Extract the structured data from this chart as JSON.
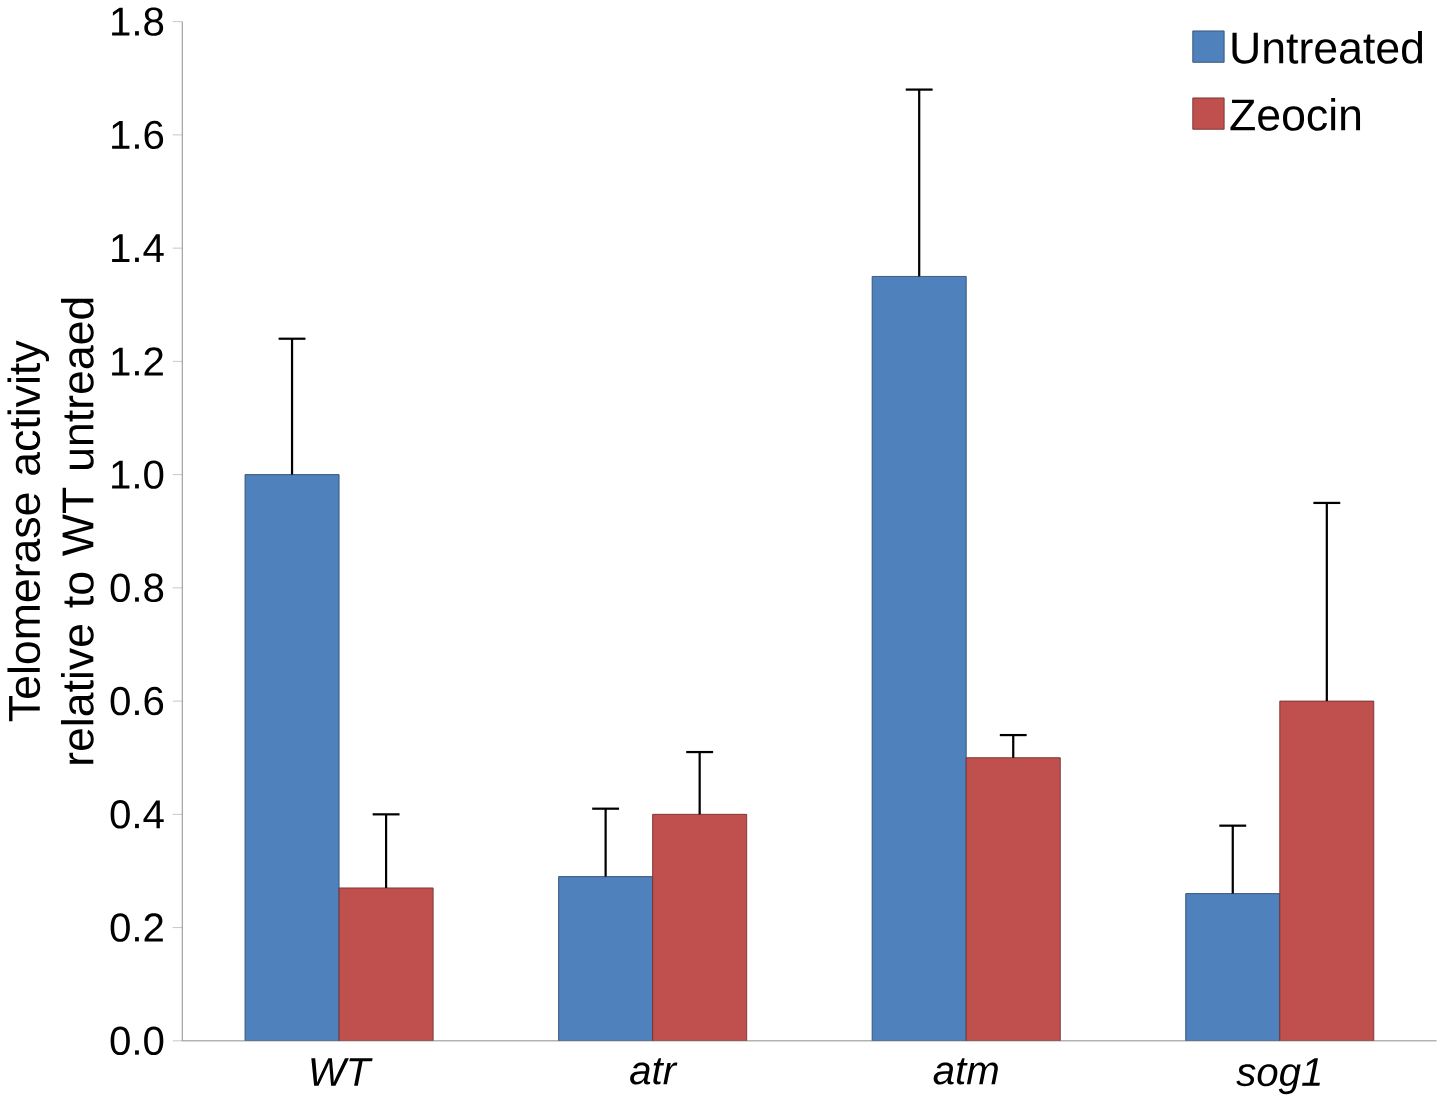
{
  "chart_data": {
    "type": "bar",
    "ylabel": "Telomerase activity relative to WT untreaed",
    "categories": [
      "WT",
      "atr",
      "atm",
      "sog1"
    ],
    "series": [
      {
        "name": "Untreated",
        "color": "#4f81bd",
        "values": [
          1.0,
          0.29,
          1.35,
          0.26
        ],
        "errors": [
          [
            1.0,
            1.24
          ],
          [
            0.29,
            0.41
          ],
          [
            1.35,
            1.68
          ],
          [
            0.26,
            0.38
          ]
        ]
      },
      {
        "name": "Zeocin",
        "color": "#c0504d",
        "values": [
          0.27,
          0.4,
          0.5,
          0.6
        ],
        "errors": [
          [
            0.27,
            0.4
          ],
          [
            0.4,
            0.51
          ],
          [
            0.5,
            0.54
          ],
          [
            0.6,
            0.95
          ]
        ]
      }
    ],
    "ylim": [
      0,
      1.8
    ],
    "yticks": [
      {
        "value": 0,
        "label": "0.0"
      },
      {
        "value": 0.2,
        "label": "0.2"
      },
      {
        "value": 0.4,
        "label": "0.4"
      },
      {
        "value": 0.6,
        "label": "0.6"
      },
      {
        "value": 0.8,
        "label": "0.8"
      },
      {
        "value": 1,
        "label": "1.0"
      },
      {
        "value": 1.2,
        "label": "1.2"
      },
      {
        "value": 1.4,
        "label": "1.4"
      },
      {
        "value": 1.6,
        "label": "1.6"
      },
      {
        "value": 1.8,
        "label": "1.8"
      }
    ],
    "grid": false,
    "legend": "top right"
  }
}
